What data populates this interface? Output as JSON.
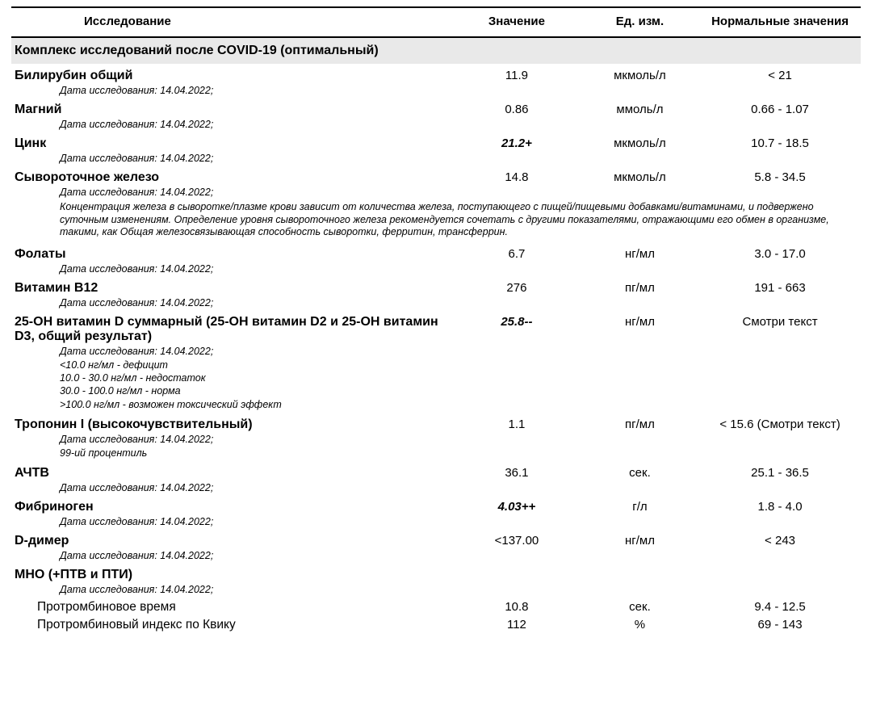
{
  "headers": {
    "name": "Исследование",
    "value": "Значение",
    "unit": "Ед. изм.",
    "norm": "Нормальные значения"
  },
  "section_title": "Комплекс исследований после COVID-19 (оптимальный)",
  "date_prefix": "Дата исследования: 14.04.2022;",
  "rows": [
    {
      "name": "Билирубин общий",
      "value": "11.9",
      "unit": "мкмоль/л",
      "norm": "< 21",
      "flag": false
    },
    {
      "name": "Магний",
      "value": "0.86",
      "unit": "ммоль/л",
      "norm": "0.66 - 1.07",
      "flag": false
    },
    {
      "name": "Цинк",
      "value": "21.2+",
      "unit": "мкмоль/л",
      "norm": "10.7 - 18.5",
      "flag": true
    },
    {
      "name": "Сывороточное железо",
      "value": "14.8",
      "unit": "мкмоль/л",
      "norm": "5.8 - 34.5",
      "flag": false,
      "note": "Концентрация железа в сыворотке/плазме крови зависит от количества железа, поступающего с пищей/пищевыми добавками/витаминами, и подвержено суточным изменениям. Определение уровня сывороточного железа рекомендуется сочетать с другими показателями, отражающими его обмен в организме, такими, как Общая железосвязывающая способность сыворотки, ферритин, трансферрин."
    },
    {
      "name": "Фолаты",
      "value": "6.7",
      "unit": "нг/мл",
      "norm": "3.0 - 17.0",
      "flag": false
    },
    {
      "name": "Витамин B12",
      "value": "276",
      "unit": "пг/мл",
      "norm": "191 - 663",
      "flag": false
    },
    {
      "name": "25-OH витамин D суммарный (25-OH витамин D2 и 25-OH витамин D3, общий результат)",
      "value": "25.8--",
      "unit": "нг/мл",
      "norm": "Смотри текст",
      "flag": true,
      "note_lines": "<10.0 нг/мл - дефицит\n10.0 - 30.0 нг/мл - недостаток\n30.0 - 100.0 нг/мл - норма\n>100.0 нг/мл - возможен токсический эффект"
    },
    {
      "name": "Тропонин I (высокочувствительный)",
      "value": "1.1",
      "unit": "пг/мл",
      "norm": "< 15.6 (Смотри текст)",
      "flag": false,
      "note_lines": "99-ий процентиль"
    },
    {
      "name": "АЧТВ",
      "value": "36.1",
      "unit": "сек.",
      "norm": "25.1 - 36.5",
      "flag": false
    },
    {
      "name": "Фибриноген",
      "value": "4.03++",
      "unit": "г/л",
      "norm": "1.8 - 4.0",
      "flag": true
    },
    {
      "name": "D-димер",
      "value": "<137.00",
      "unit": "нг/мл",
      "norm": "< 243",
      "flag": false
    },
    {
      "name": "МНО (+ПТВ и ПТИ)",
      "value": "",
      "unit": "",
      "norm": "",
      "flag": false,
      "subrows": [
        {
          "name": "Протромбиновое время",
          "value": "10.8",
          "unit": "сек.",
          "norm": "9.4 - 12.5"
        },
        {
          "name": "Протромбиновый индекс по Квику",
          "value": "112",
          "unit": "%",
          "norm": "69 - 143"
        }
      ]
    }
  ]
}
